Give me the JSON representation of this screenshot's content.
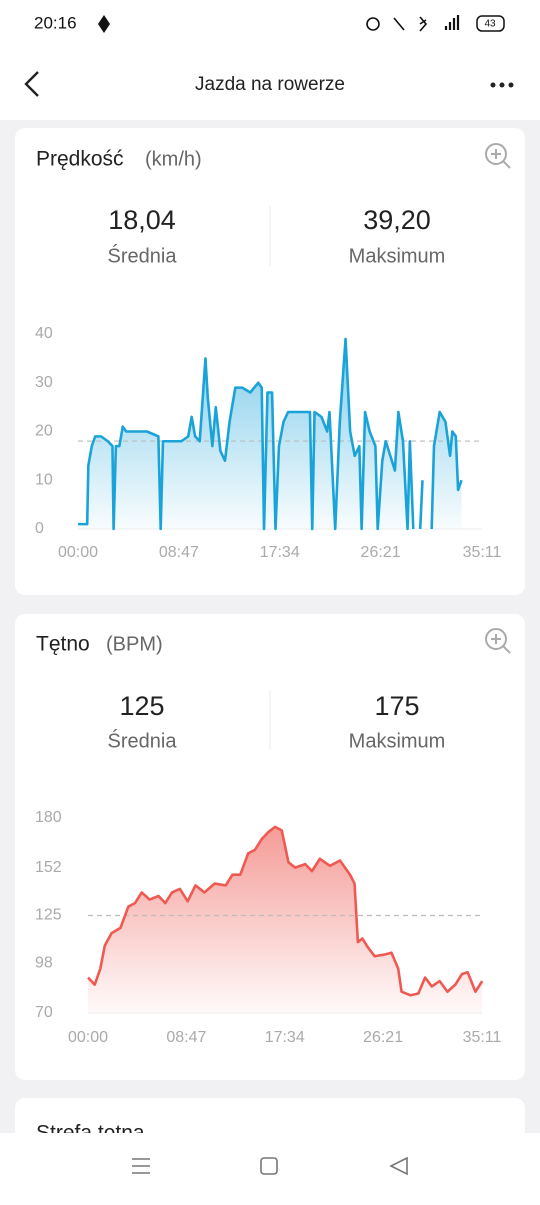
{
  "status_bar": {
    "time": "20:16",
    "battery": "43"
  },
  "header": {
    "title": "Jazda na rowerze"
  },
  "cards": [
    {
      "title": "Prędkość",
      "unit": "(km/h)",
      "stats": [
        {
          "value": "18,04",
          "label": "Średnia"
        },
        {
          "value": "39,20",
          "label": "Maksimum"
        }
      ]
    },
    {
      "title": "Tętno",
      "unit": "(BPM)",
      "stats": [
        {
          "value": "125",
          "label": "Średnia"
        },
        {
          "value": "175",
          "label": "Maksimum"
        }
      ]
    }
  ],
  "next_card_title": "Strefa tętna",
  "chart_data": [
    {
      "type": "line",
      "color": "#1aa3d9",
      "grid": false,
      "reference_line": 18.04,
      "xlim": [
        0,
        35.183
      ],
      "ylim": [
        0,
        40
      ],
      "xticks": [
        {
          "value": 0,
          "label": "00:00"
        },
        {
          "value": 8.783,
          "label": "08:47"
        },
        {
          "value": 17.567,
          "label": "17:34"
        },
        {
          "value": 26.35,
          "label": "26:21"
        },
        {
          "value": 35.183,
          "label": "35:11"
        }
      ],
      "yticks": [
        0,
        10,
        20,
        30,
        40
      ],
      "x": [
        0,
        0.8,
        0.9,
        1.2,
        1.5,
        2.0,
        2.6,
        3.0,
        3.1,
        3.3,
        3.6,
        3.9,
        4.2,
        5.0,
        6.0,
        7.0,
        7.2,
        7.4,
        8.0,
        9.0,
        9.6,
        9.9,
        10.2,
        10.6,
        11.1,
        11.3,
        11.7,
        12.0,
        12.4,
        12.8,
        13.2,
        13.7,
        14.3,
        15.0,
        15.7,
        16.0,
        16.2,
        16.5,
        16.9,
        17.2,
        17.5,
        17.9,
        18.3,
        19.3,
        20.2,
        20.4,
        20.6,
        21.2,
        21.7,
        21.9,
        22.4,
        22.8,
        23.3,
        23.7,
        24.1,
        24.5,
        24.7,
        25.0,
        25.4,
        25.9,
        26.1,
        26.5,
        26.8,
        27.2,
        27.6,
        27.9,
        28.3,
        28.7,
        28.9,
        29.2,
        29.5,
        29.8,
        30.0,
        30.2,
        30.8,
        31.0,
        31.5,
        32.0,
        32.4,
        32.6,
        32.9,
        33.1,
        33.4
      ],
      "values": [
        1,
        1,
        13,
        17,
        19,
        19,
        18,
        17,
        0,
        17,
        17,
        21,
        20,
        20,
        20,
        19,
        0,
        18,
        18,
        18,
        19,
        23,
        19,
        18,
        35,
        27,
        17,
        25,
        16,
        14,
        22,
        29,
        29,
        28,
        30,
        29,
        0,
        28,
        28,
        0,
        17,
        22,
        24,
        24,
        24,
        0,
        24,
        23,
        20,
        24,
        0,
        22,
        39,
        20,
        15,
        17,
        0,
        24,
        20,
        17,
        0,
        14,
        18,
        15,
        12,
        24,
        18,
        0,
        18,
        0,
        null,
        0,
        10,
        null,
        0,
        17,
        24,
        22,
        15,
        20,
        19,
        8,
        10
      ]
    },
    {
      "type": "line",
      "color": "#ee5a52",
      "grid": false,
      "reference_line": 125,
      "xlim": [
        0,
        35.183
      ],
      "ylim": [
        70,
        180
      ],
      "xticks": [
        {
          "value": 0,
          "label": "00:00"
        },
        {
          "value": 8.783,
          "label": "08:47"
        },
        {
          "value": 17.567,
          "label": "17:34"
        },
        {
          "value": 26.35,
          "label": "26:21"
        },
        {
          "value": 35.183,
          "label": "35:11"
        }
      ],
      "yticks": [
        70,
        98,
        125,
        152,
        180
      ],
      "x": [
        0,
        0.6,
        1.1,
        1.5,
        2.1,
        2.9,
        3.6,
        4.2,
        4.8,
        5.5,
        6.3,
        6.9,
        7.5,
        8.2,
        8.9,
        9.6,
        10.4,
        11.3,
        12.3,
        12.9,
        13.6,
        14.3,
        14.9,
        15.5,
        16.1,
        16.7,
        17.3,
        17.9,
        18.5,
        19.4,
        20.0,
        20.7,
        21.6,
        22.5,
        23.4,
        23.8,
        24.1,
        24.5,
        25.0,
        25.6,
        26.5,
        27.1,
        27.7,
        28.0,
        28.8,
        29.5,
        30.1,
        30.7,
        31.4,
        32.1,
        32.8,
        33.4,
        33.9,
        34.6,
        35.2
      ],
      "values": [
        90,
        86,
        95,
        108,
        115,
        118,
        130,
        132,
        138,
        134,
        136,
        132,
        138,
        140,
        133,
        142,
        138,
        143,
        142,
        148,
        148,
        160,
        162,
        168,
        172,
        175,
        173,
        155,
        152,
        154,
        150,
        157,
        153,
        156,
        148,
        143,
        110,
        112,
        107,
        102,
        103,
        104,
        95,
        82,
        80,
        81,
        90,
        85,
        88,
        82,
        86,
        92,
        93,
        82,
        88
      ]
    }
  ]
}
